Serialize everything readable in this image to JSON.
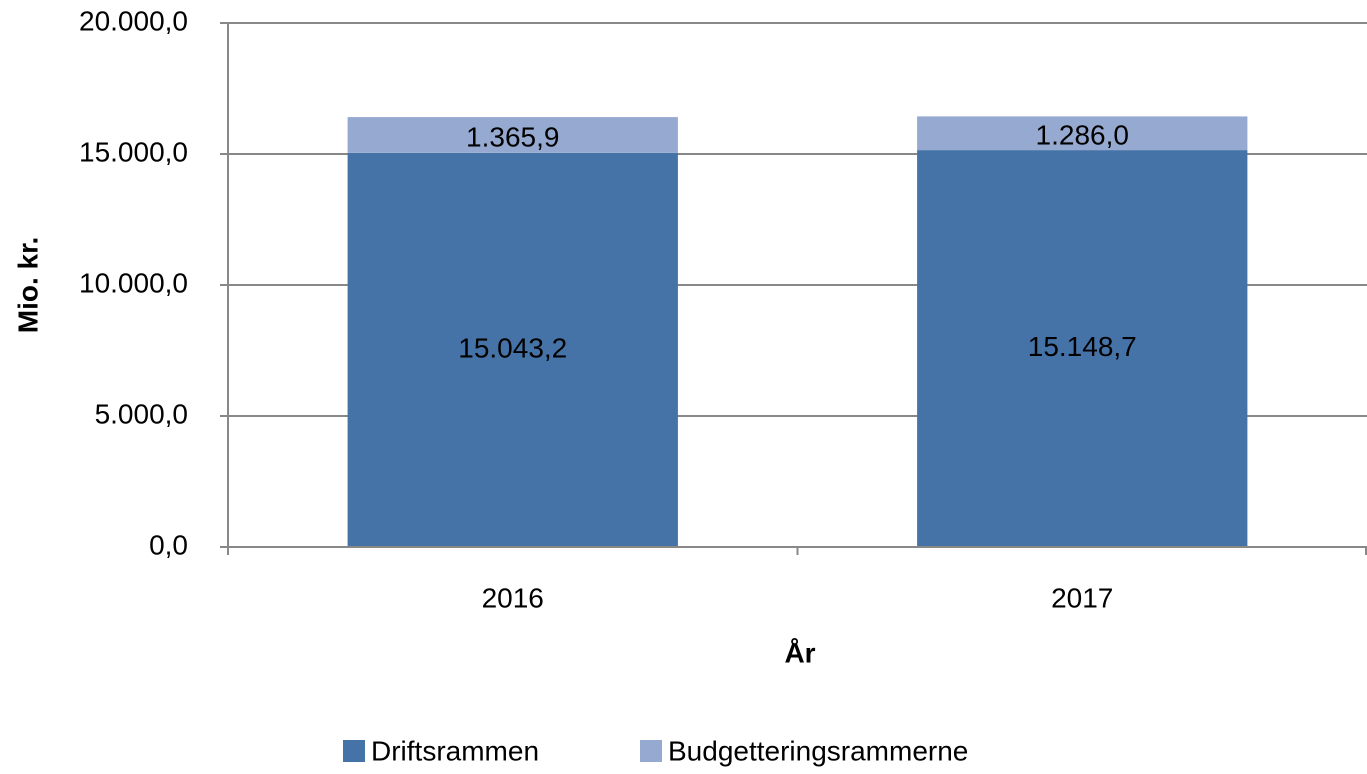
{
  "chart_data": {
    "type": "bar",
    "stacked": true,
    "categories": [
      "2016",
      "2017"
    ],
    "series": [
      {
        "name": "Driftsrammen",
        "color": "#4673a7",
        "values": [
          15043.2,
          15148.7
        ],
        "value_labels": [
          "15.043,2",
          "15.148,7"
        ]
      },
      {
        "name": "Budgetteringsrammerne",
        "color": "#95a9d1",
        "values": [
          1365.9,
          1286.0
        ],
        "value_labels": [
          "1.365,9",
          "1.286,0"
        ]
      }
    ],
    "ylim": [
      0,
      20000
    ],
    "yticks": [
      {
        "value": 0,
        "label": "0,0"
      },
      {
        "value": 5000,
        "label": "5.000,0"
      },
      {
        "value": 10000,
        "label": "10.000,0"
      },
      {
        "value": 15000,
        "label": "15.000,0"
      },
      {
        "value": 20000,
        "label": "20.000,0"
      }
    ],
    "xlabel": "År",
    "ylabel": "Mio. kr.",
    "grid": true,
    "legend": "bottom"
  }
}
